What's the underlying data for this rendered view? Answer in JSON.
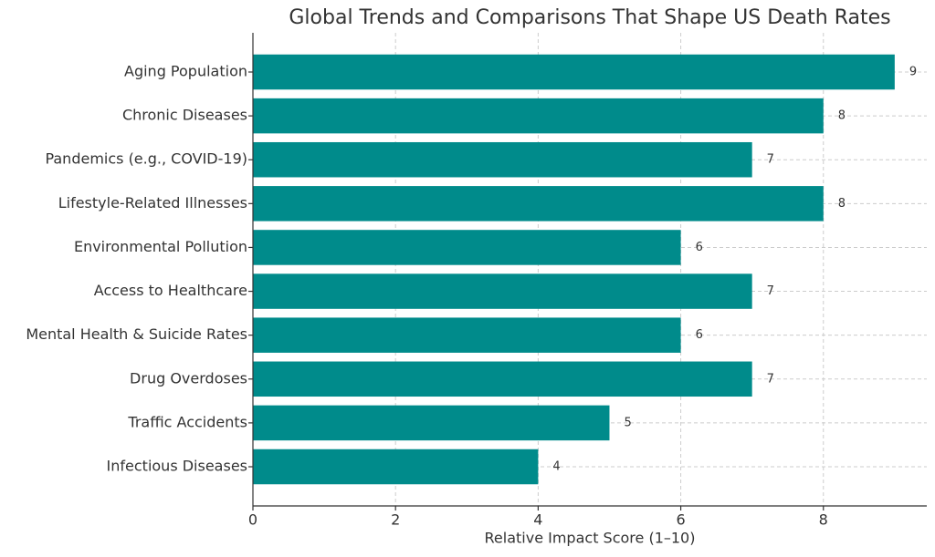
{
  "chart_data": {
    "type": "bar",
    "orientation": "horizontal",
    "title": "Global Trends and Comparisons That Shape US Death Rates",
    "xlabel": "Relative Impact Score (1–10)",
    "categories": [
      "Aging Population",
      "Chronic Diseases",
      "Pandemics (e.g., COVID-19)",
      "Lifestyle-Related Illnesses",
      "Environmental Pollution",
      "Access to Healthcare",
      "Mental Health & Suicide Rates",
      "Drug Overdoses",
      "Traffic Accidents",
      "Infectious Diseases"
    ],
    "values": [
      9,
      8,
      7,
      8,
      6,
      7,
      6,
      7,
      5,
      4
    ],
    "color": "#008b8b",
    "xlim": [
      0,
      9.45
    ],
    "xticks": [
      0,
      2,
      4,
      6,
      8
    ],
    "grid": true
  }
}
